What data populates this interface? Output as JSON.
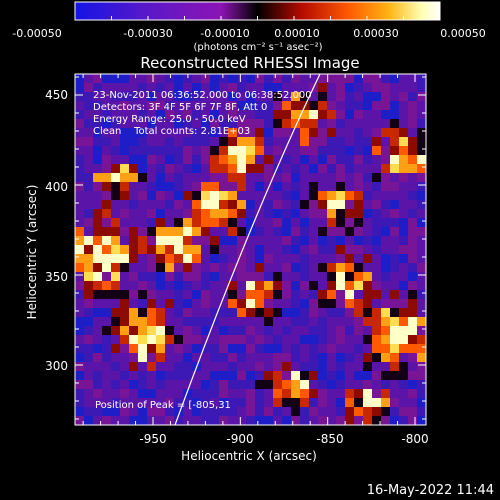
{
  "colorbar": {
    "tick_labels": [
      "-0.00050",
      "-0.00030",
      "-0.00010",
      "0.00010",
      "0.00030",
      "0.00050"
    ],
    "units": "(photons cm⁻² s⁻¹ asec⁻²)",
    "colors": [
      "#1414e6",
      "#5a18c8",
      "#8c14b4",
      "#000000",
      "#b40a00",
      "#ff5a00",
      "#ffb414",
      "#ffffb4",
      "#ffffff"
    ]
  },
  "image": {
    "title": "Reconstructed RHESSI Image",
    "info_lines": [
      "23-Nov-2011 06:36:52.000 to 06:38:52.000",
      "Detectors: 3F 4F 5F 6F 7F 8F, Att 0",
      "Energy Range: 25.0 - 50.0 keV",
      "Clean    Total counts: 2.81E+03"
    ],
    "peak_label": "Position of Peak = [-805,31"
  },
  "axes": {
    "xlabel": "Heliocentric X (arcsec)",
    "ylabel": "Heliocentric Y (arcsec)",
    "x_ticks": [
      "-950",
      "-900",
      "-850",
      "-800"
    ],
    "y_ticks": [
      "300",
      "350",
      "400",
      "450"
    ]
  },
  "footer": {
    "timestamp": "16-May-2022 11:44"
  }
}
